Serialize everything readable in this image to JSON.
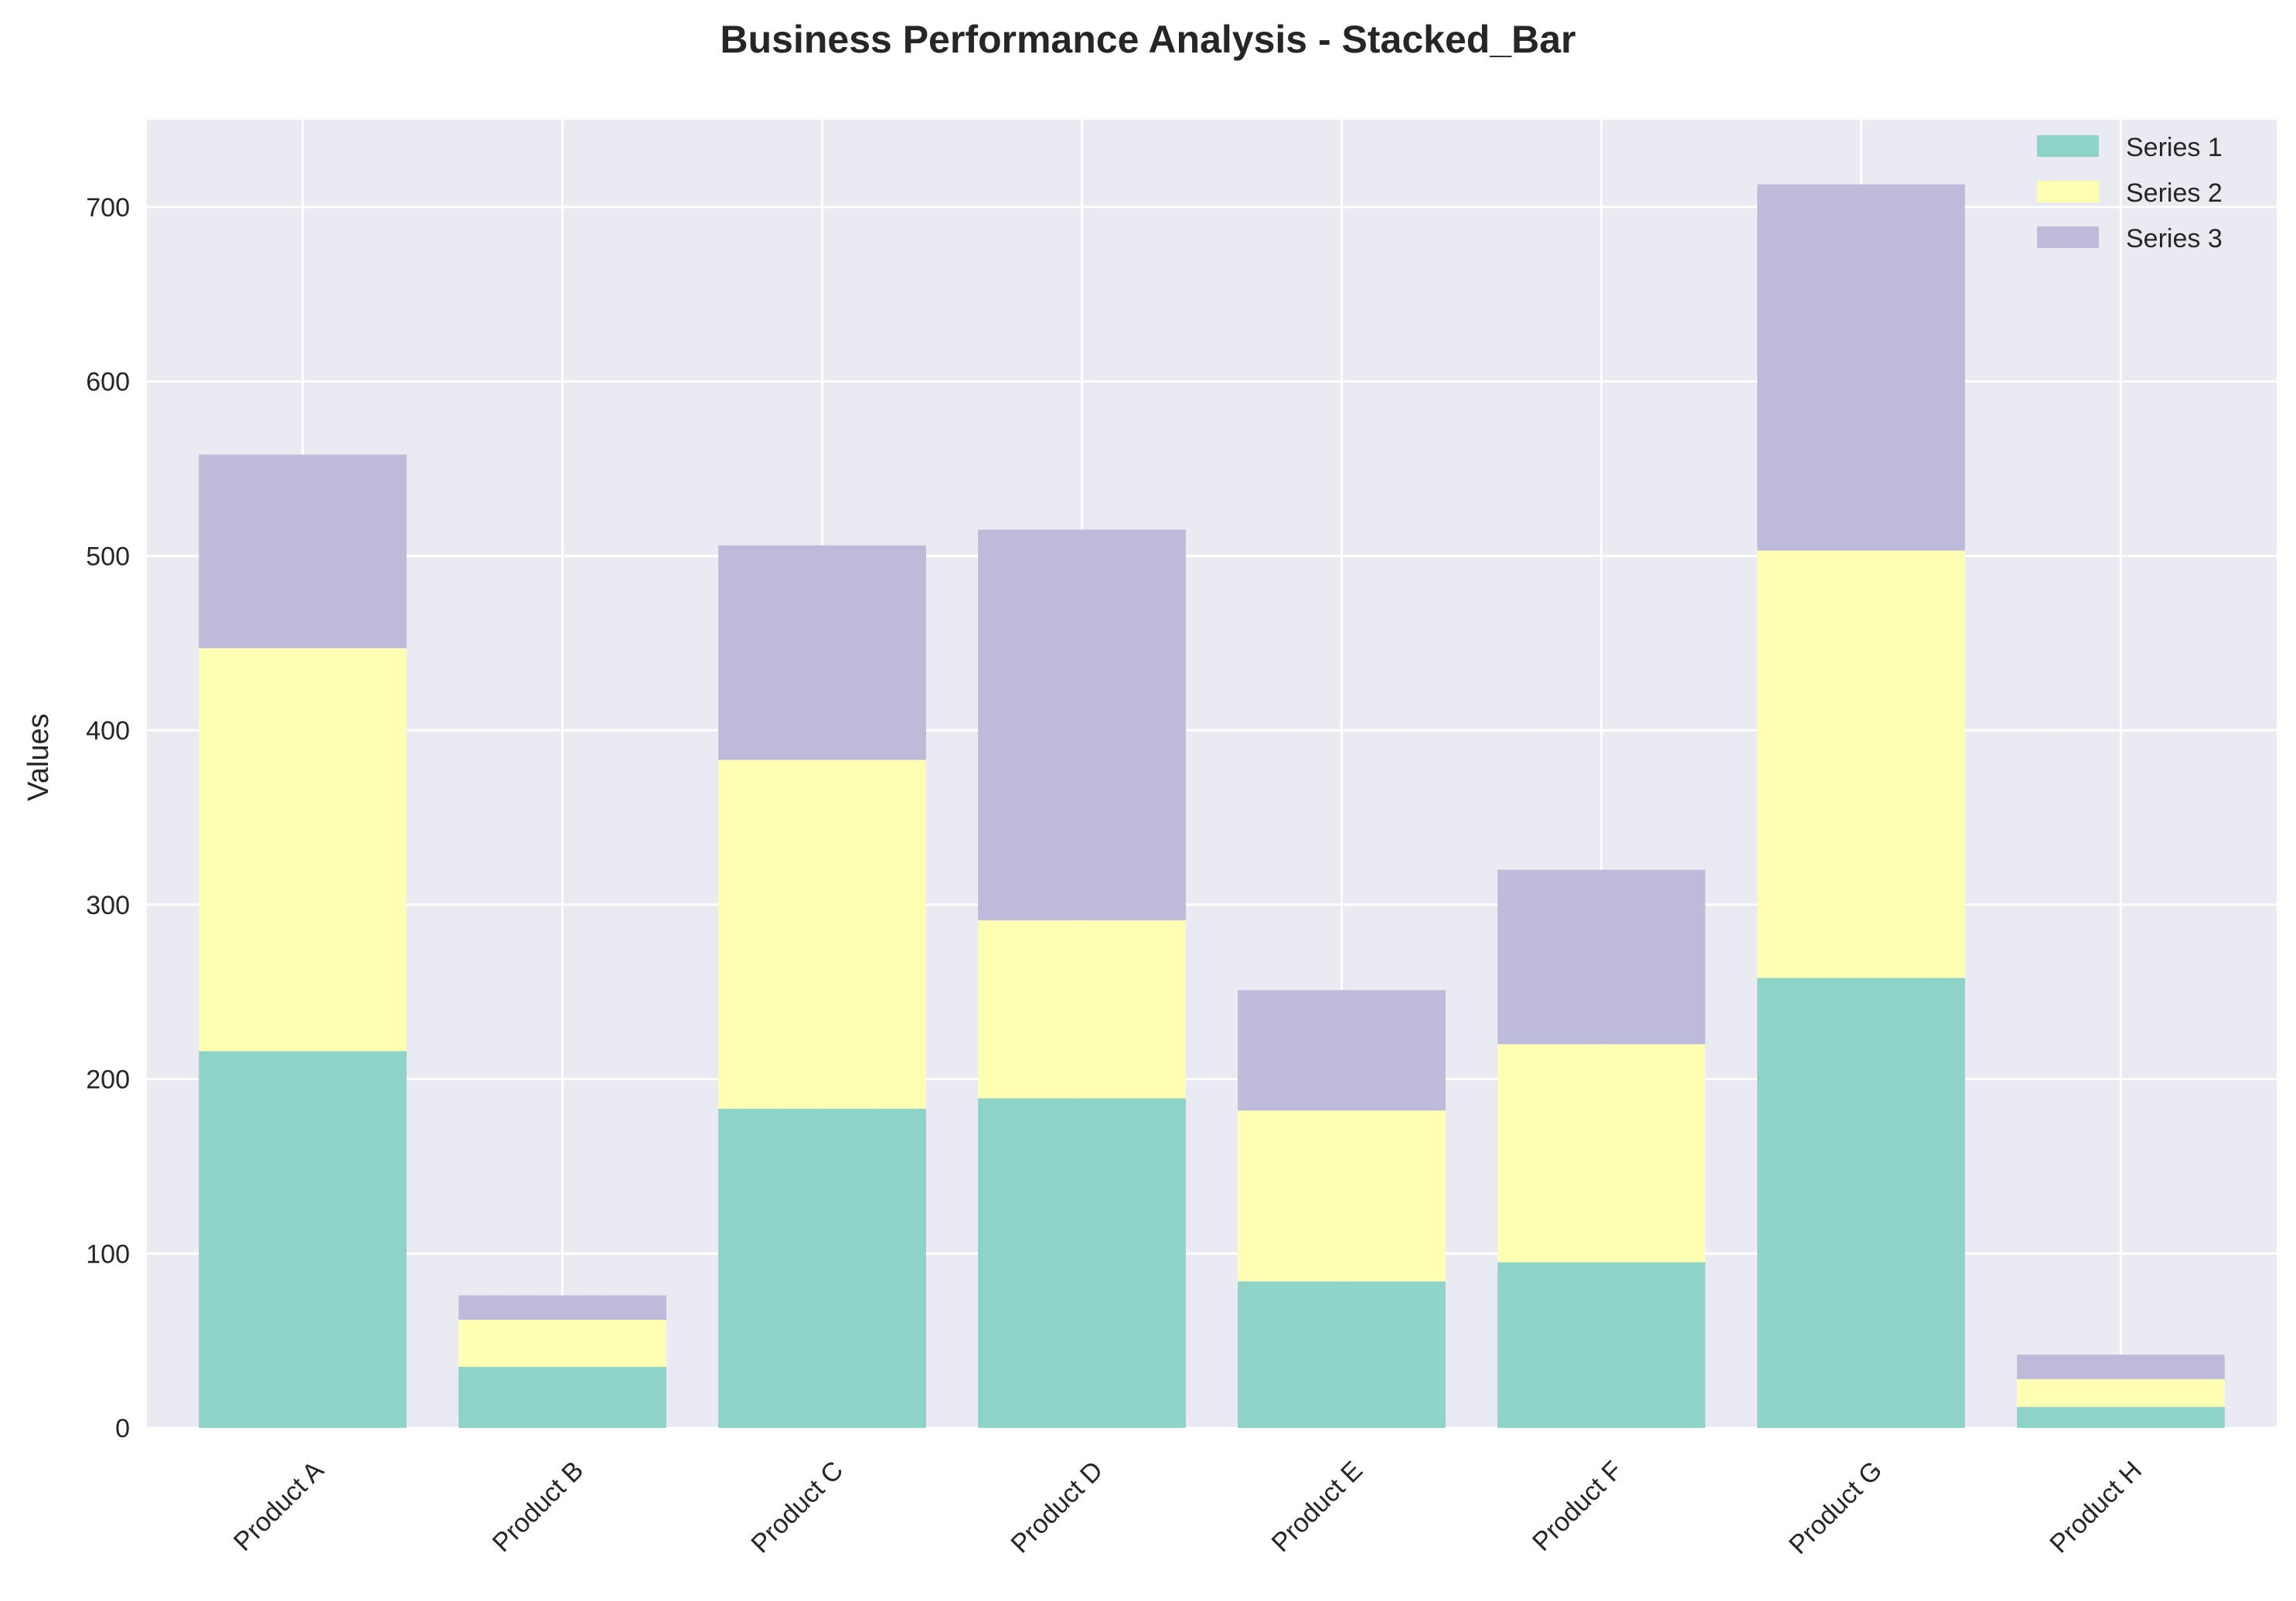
{
  "chart_data": {
    "type": "bar",
    "stacked": true,
    "title": "Business Performance Analysis - Stacked_Bar",
    "xlabel": "",
    "ylabel": "Values",
    "categories": [
      "Product A",
      "Product B",
      "Product C",
      "Product D",
      "Product E",
      "Product F",
      "Product G",
      "Product H"
    ],
    "series": [
      {
        "name": "Series 1",
        "color": "#8dd3c7",
        "values": [
          216,
          35,
          183,
          189,
          84,
          95,
          258,
          12
        ]
      },
      {
        "name": "Series 2",
        "color": "#ffffb3",
        "values": [
          231,
          27,
          200,
          102,
          98,
          125,
          245,
          16
        ]
      },
      {
        "name": "Series 3",
        "color": "#bebada",
        "values": [
          111,
          14,
          123,
          224,
          69,
          100,
          210,
          14
        ]
      }
    ],
    "ylim": [
      0,
      750
    ],
    "yticks": [
      0,
      100,
      200,
      300,
      400,
      500,
      600,
      700
    ],
    "grid": true,
    "legend_position": "top-right",
    "background_color": "#eaeaf2",
    "grid_color": "#ffffff"
  }
}
